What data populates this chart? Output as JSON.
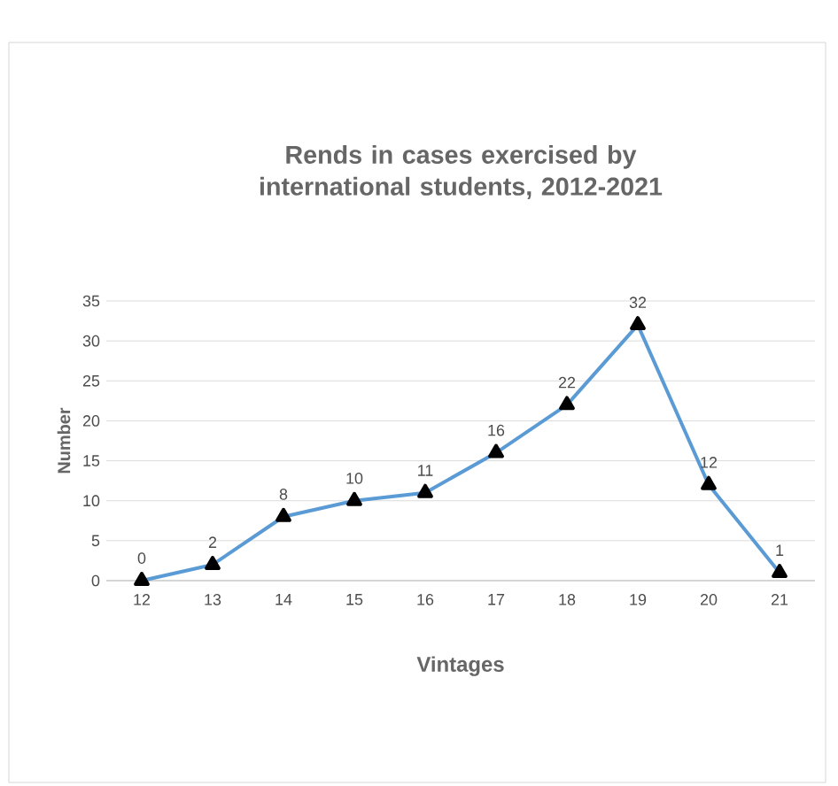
{
  "chart_data": {
    "type": "line",
    "title": "Rends in cases exercised by international students, 2012-2021",
    "xlabel": "Vintages",
    "ylabel": "Number",
    "categories": [
      "12",
      "13",
      "14",
      "15",
      "16",
      "17",
      "18",
      "19",
      "20",
      "21"
    ],
    "series": [
      {
        "color": "#5b9bd5",
        "values": [
          0,
          2,
          8,
          10,
          11,
          16,
          22,
          32,
          12,
          1
        ]
      }
    ],
    "ylim": [
      0,
      35
    ],
    "yticks": [
      0,
      5,
      10,
      15,
      20,
      25,
      30,
      35
    ],
    "grid": "y",
    "marker": "triangle",
    "line_style": "solid",
    "data_labels": true
  }
}
